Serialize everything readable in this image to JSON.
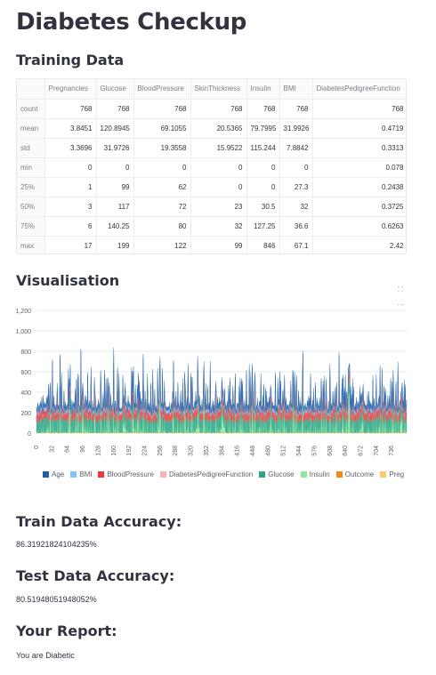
{
  "page": {
    "title": "Diabetes Checkup",
    "training_heading": "Training Data",
    "visualisation_heading": "Visualisation",
    "train_acc_heading": "Train Data Accuracy:",
    "train_acc_value": "86.31921824104235%",
    "test_acc_heading": "Test Data Accuracy:",
    "test_acc_value": "80.51948051948052%",
    "report_heading": "Your Report:",
    "report_value": "You are Diabetic"
  },
  "table": {
    "columns": [
      "",
      "Pregnancies",
      "Glucose",
      "BloodPressure",
      "SkinThickness",
      "Insulin",
      "BMI",
      "DiabetesPedigreeFunction"
    ],
    "rows": [
      [
        "count",
        "768",
        "768",
        "768",
        "768",
        "768",
        "768",
        "768"
      ],
      [
        "mean",
        "3.8451",
        "120.8945",
        "69.1055",
        "20.5365",
        "79.7995",
        "31.9926",
        "0.4719"
      ],
      [
        "std",
        "3.3696",
        "31.9726",
        "19.3558",
        "15.9522",
        "115.244",
        "7.8842",
        "0.3313"
      ],
      [
        "min",
        "0",
        "0",
        "0",
        "0",
        "0",
        "0",
        "0.078"
      ],
      [
        "25%",
        "1",
        "99",
        "62",
        "0",
        "0",
        "27.3",
        "0.2438"
      ],
      [
        "50%",
        "3",
        "117",
        "72",
        "23",
        "30.5",
        "32",
        "0.3725"
      ],
      [
        "75%",
        "6",
        "140.25",
        "80",
        "32",
        "127.25",
        "36.6",
        "0.6263"
      ],
      [
        "max",
        "17",
        "199",
        "122",
        "99",
        "846",
        "67.1",
        "2.42"
      ]
    ]
  },
  "toolbar": {
    "fullscreen_icon": "fullscreen-icon",
    "menu_icon": "more-icon"
  },
  "chart_data": {
    "type": "area",
    "stacked": true,
    "ylim": [
      0,
      1200
    ],
    "yticks": [
      "0",
      "200",
      "400",
      "600",
      "800",
      "1,000",
      "1,200"
    ],
    "xticks": [
      "0",
      "32",
      "64",
      "96",
      "128",
      "160",
      "192",
      "224",
      "256",
      "288",
      "320",
      "352",
      "384",
      "416",
      "448",
      "480",
      "512",
      "544",
      "576",
      "608",
      "640",
      "672",
      "704",
      "736"
    ],
    "xlim": [
      0,
      767
    ],
    "grid": true,
    "legend_position": "bottom",
    "series": [
      {
        "name": "Age",
        "color": "#1f5fa8"
      },
      {
        "name": "BMI",
        "color": "#83c2f5"
      },
      {
        "name": "BloodPressure",
        "color": "#ef3a3a"
      },
      {
        "name": "DiabetesPedigreeFunction",
        "color": "#f7b3b3"
      },
      {
        "name": "Glucose",
        "color": "#2aa58a"
      },
      {
        "name": "Insulin",
        "color": "#8ee59b"
      },
      {
        "name": "Outcome",
        "color": "#f58a12"
      },
      {
        "name": "Preg",
        "color": "#ffc96b"
      }
    ]
  }
}
